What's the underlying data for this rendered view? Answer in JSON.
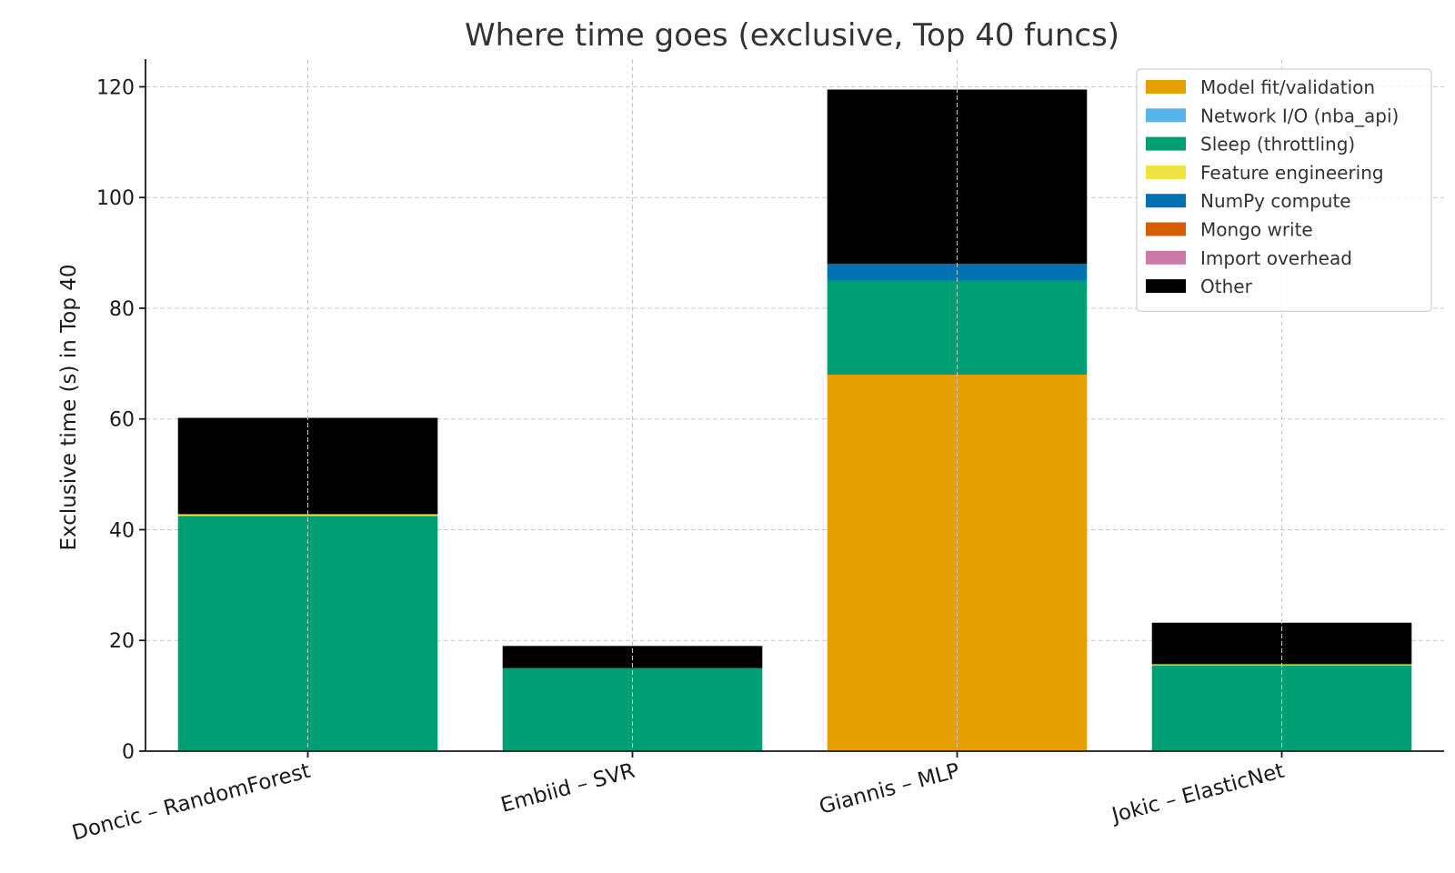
{
  "chart_data": {
    "type": "bar",
    "stacked": true,
    "title": "Where time goes (exclusive, Top 40 funcs)",
    "xlabel": "",
    "ylabel": "Exclusive time (s) in Top 40",
    "ylim": [
      0,
      125
    ],
    "yticks": [
      0,
      20,
      40,
      60,
      80,
      100,
      120
    ],
    "grid": true,
    "legend_position": "top-right",
    "categories": [
      "Doncic – RandomForest",
      "Embiid – SVR",
      "Giannis – MLP",
      "Jokic – ElasticNet"
    ],
    "series": [
      {
        "name": "Model fit/validation",
        "color": "#E69F00",
        "values": [
          0,
          0,
          68,
          0
        ]
      },
      {
        "name": "Network I/O (nba_api)",
        "color": "#56B4E9",
        "values": [
          0,
          0,
          0,
          0
        ]
      },
      {
        "name": "Sleep (throttling)",
        "color": "#009E73",
        "values": [
          42.5,
          15,
          17,
          15.5
        ]
      },
      {
        "name": "Feature engineering",
        "color": "#F0E442",
        "values": [
          0.3,
          0,
          0,
          0.2
        ]
      },
      {
        "name": "NumPy compute",
        "color": "#0072B2",
        "values": [
          0,
          0,
          3,
          0
        ]
      },
      {
        "name": "Mongo write",
        "color": "#D55E00",
        "values": [
          0,
          0,
          0,
          0
        ]
      },
      {
        "name": "Import overhead",
        "color": "#CC79A7",
        "values": [
          0,
          0,
          0,
          0
        ]
      },
      {
        "name": "Other",
        "color": "#000000",
        "values": [
          17.4,
          4,
          31.5,
          7.5
        ]
      }
    ]
  }
}
